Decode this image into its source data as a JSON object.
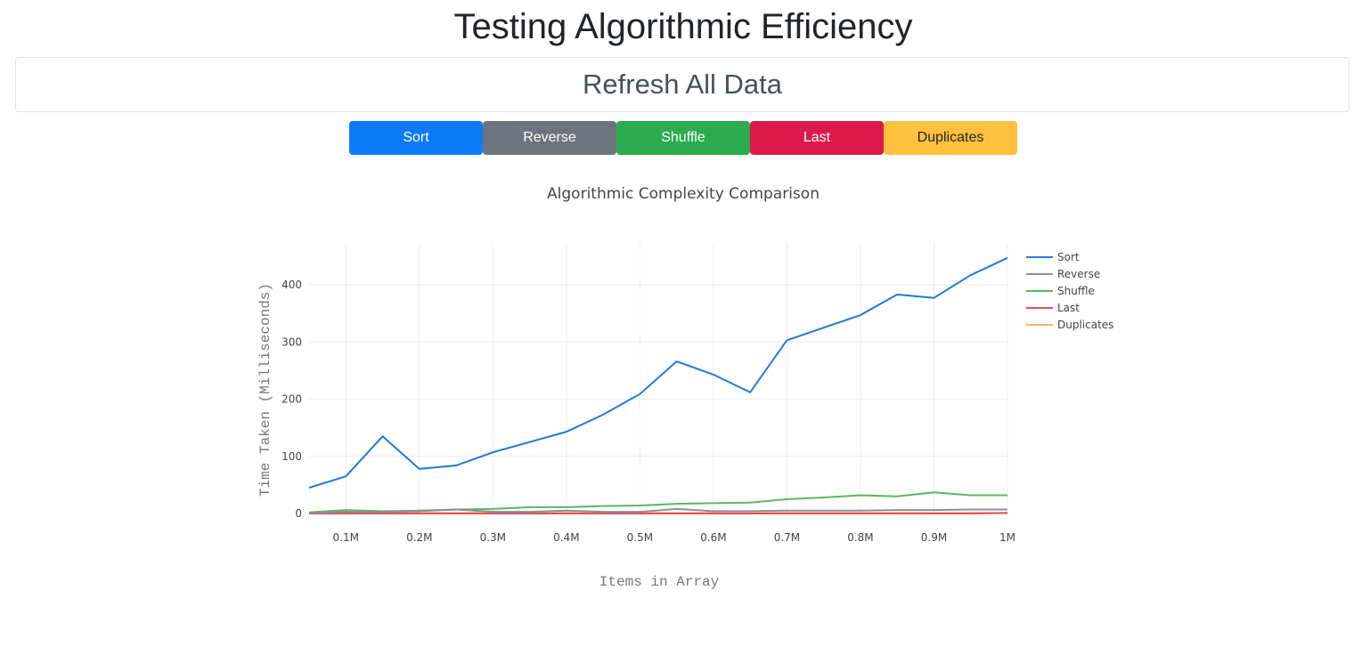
{
  "header": {
    "title": "Testing Algorithmic Efficiency",
    "refresh_label": "Refresh All Data"
  },
  "buttons": [
    {
      "label": "Sort",
      "color": "#0d7bf7",
      "text": "#ffffff"
    },
    {
      "label": "Reverse",
      "color": "#6c757d",
      "text": "#ffffff"
    },
    {
      "label": "Shuffle",
      "color": "#2bac4e",
      "text": "#ffffff"
    },
    {
      "label": "Last",
      "color": "#dc1a4a",
      "text": "#ffffff"
    },
    {
      "label": "Duplicates",
      "color": "#ffc13e",
      "text": "#212529"
    }
  ],
  "chart_data": {
    "type": "line",
    "title": "Algorithmic Complexity Comparison",
    "xlabel": "Items in Array",
    "ylabel": "Time Taken (Milliseconds)",
    "x": [
      0.05,
      0.1,
      0.15,
      0.2,
      0.25,
      0.3,
      0.35,
      0.4,
      0.45,
      0.5,
      0.55,
      0.6,
      0.65,
      0.7,
      0.75,
      0.8,
      0.85,
      0.9,
      0.95,
      1.0
    ],
    "xlim": [
      0.05,
      1.0
    ],
    "ylim": [
      0,
      460
    ],
    "xticks": [
      0.1,
      0.2,
      0.3,
      0.4,
      0.5,
      0.6,
      0.7,
      0.8,
      0.9,
      1.0
    ],
    "xtick_labels": [
      "0.1M",
      "0.2M",
      "0.3M",
      "0.4M",
      "0.5M",
      "0.6M",
      "0.7M",
      "0.8M",
      "0.9M",
      "1M"
    ],
    "yticks": [
      0,
      100,
      200,
      300,
      400
    ],
    "ytick_labels": [
      "0",
      "100",
      "200",
      "300",
      "400"
    ],
    "grid": true,
    "legend": "top-right",
    "series": [
      {
        "name": "Sort",
        "color": "#1f7ad8",
        "values": [
          45,
          65,
          135,
          78,
          84,
          107,
          125,
          143,
          173,
          209,
          266,
          243,
          212,
          303,
          325,
          347,
          383,
          377,
          417,
          447
        ]
      },
      {
        "name": "Reverse",
        "color": "#8c8f96",
        "values": [
          1,
          3,
          3,
          4,
          7,
          3,
          3,
          5,
          3,
          3,
          8,
          4,
          4,
          5,
          5,
          5,
          6,
          6,
          7,
          7
        ]
      },
      {
        "name": "Shuffle",
        "color": "#5cb85c",
        "values": [
          2,
          6,
          4,
          5,
          7,
          8,
          11,
          11,
          13,
          14,
          17,
          18,
          19,
          25,
          28,
          32,
          30,
          37,
          32,
          32
        ]
      },
      {
        "name": "Last",
        "color": "#e0505a",
        "values": [
          0,
          0,
          0,
          0,
          0,
          0,
          0,
          0,
          0,
          0,
          0,
          0,
          0,
          0,
          0,
          0,
          0,
          0,
          0,
          1
        ]
      },
      {
        "name": "Duplicates",
        "color": "#f7b267",
        "values": [
          1,
          1,
          1,
          1,
          1,
          1,
          1,
          1,
          1,
          1,
          1,
          1,
          1,
          1,
          1,
          1,
          1,
          1,
          1,
          1
        ]
      }
    ]
  }
}
